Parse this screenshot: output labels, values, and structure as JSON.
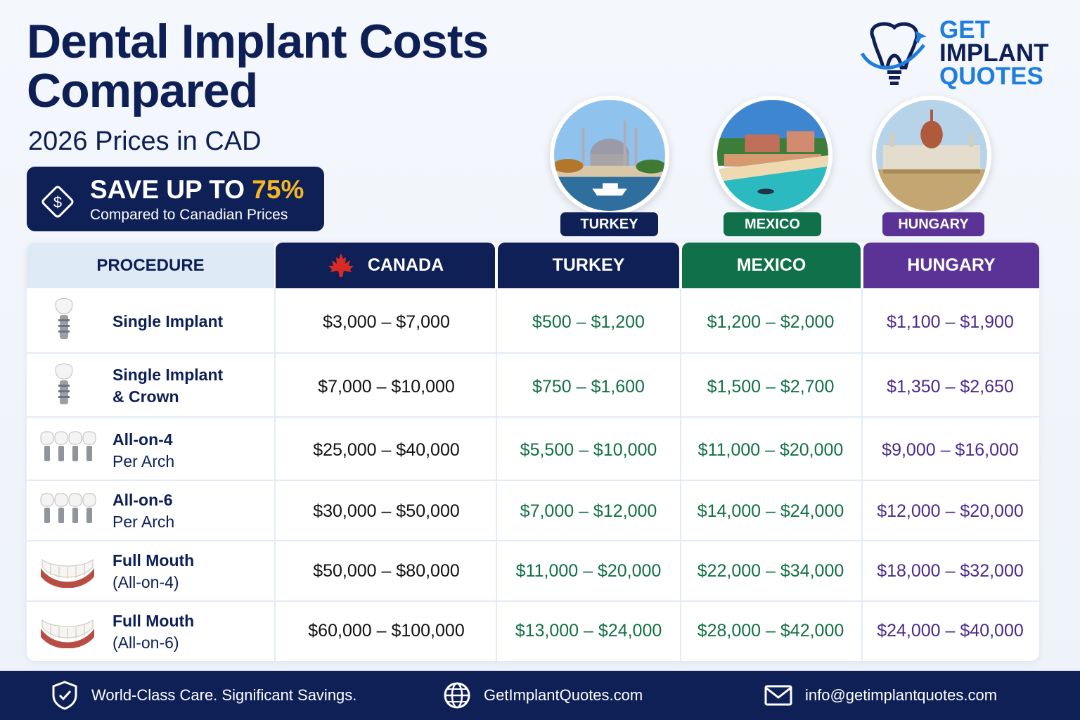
{
  "header": {
    "title_line1": "Dental Implant Costs",
    "title_line2": "Compared",
    "subtitle": "2026 Prices in CAD"
  },
  "save": {
    "prefix": "SAVE UP TO ",
    "percent": "75%",
    "caption": "Compared to Canadian Prices"
  },
  "logo": {
    "line1": "GET",
    "line2": "IMPLANT",
    "line3": "QUOTES"
  },
  "destinations": [
    {
      "label": "TURKEY"
    },
    {
      "label": "MEXICO"
    },
    {
      "label": "HUNGARY"
    }
  ],
  "table": {
    "columns": [
      "PROCEDURE",
      "CANADA",
      "TURKEY",
      "MEXICO",
      "HUNGARY"
    ],
    "rows": [
      {
        "name1": "Single Implant",
        "name2": "",
        "canada": "$3,000 – $7,000",
        "turkey": "$500 – $1,200",
        "mexico": "$1,200 – $2,000",
        "hungary": "$1,100 – $1,900"
      },
      {
        "name1": "Single Implant",
        "name2": "& Crown",
        "canada": "$7,000 – $10,000",
        "turkey": "$750 – $1,600",
        "mexico": "$1,500 – $2,700",
        "hungary": "$1,350 – $2,650"
      },
      {
        "name1": "All-on-4",
        "name2": "Per Arch",
        "canada": "$25,000 – $40,000",
        "turkey": "$5,500 – $10,000",
        "mexico": "$11,000 – $20,000",
        "hungary": "$9,000 – $16,000"
      },
      {
        "name1": "All-on-6",
        "name2": "Per Arch",
        "canada": "$30,000 – $50,000",
        "turkey": "$7,000 – $12,000",
        "mexico": "$14,000 – $24,000",
        "hungary": "$12,000 – $20,000"
      },
      {
        "name1": "Full Mouth",
        "name2": "(All-on-4)",
        "canada": "$50,000 – $80,000",
        "turkey": "$11,000 – $20,000",
        "mexico": "$22,000 – $34,000",
        "hungary": "$18,000 – $32,000"
      },
      {
        "name1": "Full Mouth",
        "name2": "(All-on-6)",
        "canada": "$60,000 – $100,000",
        "turkey": "$13,000 – $24,000",
        "mexico": "$28,000 – $42,000",
        "hungary": "$24,000 – $40,000"
      }
    ]
  },
  "footer": {
    "tagline": "World-Class Care. Significant Savings.",
    "website": "GetImplantQuotes.com",
    "email": "info@getimplantquotes.com"
  },
  "colors": {
    "navy": "#0e2056",
    "green": "#107049",
    "purple": "#5b3396",
    "gold": "#f5b822",
    "logo_blue": "#1f7ddc"
  }
}
